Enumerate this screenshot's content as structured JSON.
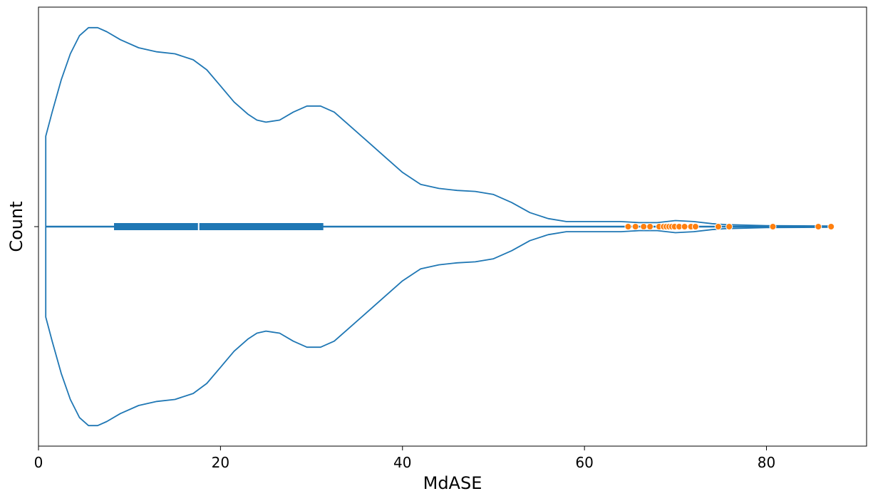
{
  "chart_data": {
    "type": "violin",
    "title": "",
    "xlabel": "MdASE",
    "ylabel": "Count",
    "xlim": [
      0,
      91
    ],
    "x_ticks": [
      0,
      20,
      40,
      60,
      80
    ],
    "y_tick_label": "",
    "grid": false,
    "legend": "none",
    "colors": {
      "violin": "#1f77b4",
      "outliers": "#ff7f0e",
      "median": "#ffffff"
    },
    "violin_density": {
      "x": [
        0.8,
        1.5,
        2.5,
        3.5,
        4.5,
        5.5,
        6.5,
        7.5,
        9,
        11,
        13,
        15,
        17,
        18.5,
        20,
        21.5,
        23,
        24,
        25,
        26.5,
        28,
        29.5,
        31,
        32.5,
        34,
        36,
        38,
        40,
        42,
        44,
        46,
        48,
        50,
        52,
        54,
        56,
        58,
        60,
        62,
        64,
        66,
        68,
        70,
        72,
        74,
        75.5,
        77,
        80,
        84,
        87.2
      ],
      "half_width": [
        0.45,
        0.57,
        0.73,
        0.86,
        0.95,
        0.99,
        0.99,
        0.97,
        0.93,
        0.89,
        0.87,
        0.86,
        0.83,
        0.78,
        0.7,
        0.62,
        0.56,
        0.53,
        0.52,
        0.53,
        0.57,
        0.6,
        0.6,
        0.57,
        0.51,
        0.43,
        0.35,
        0.27,
        0.21,
        0.19,
        0.18,
        0.175,
        0.16,
        0.12,
        0.07,
        0.04,
        0.025,
        0.025,
        0.025,
        0.025,
        0.02,
        0.02,
        0.03,
        0.025,
        0.015,
        0.01,
        0.008,
        0.005,
        0.004,
        0.003
      ]
    },
    "box": {
      "whisker_low": 0.8,
      "q1": 8.3,
      "median": 17.6,
      "q3": 31.3,
      "whisker_high": 87.2
    },
    "outliers": [
      64.8,
      65.6,
      66.5,
      67.2,
      68.2,
      68.7,
      69.0,
      69.3,
      69.6,
      69.9,
      70.4,
      71.0,
      71.7,
      72.2,
      74.7,
      75.9,
      80.7,
      85.7,
      87.1
    ]
  }
}
